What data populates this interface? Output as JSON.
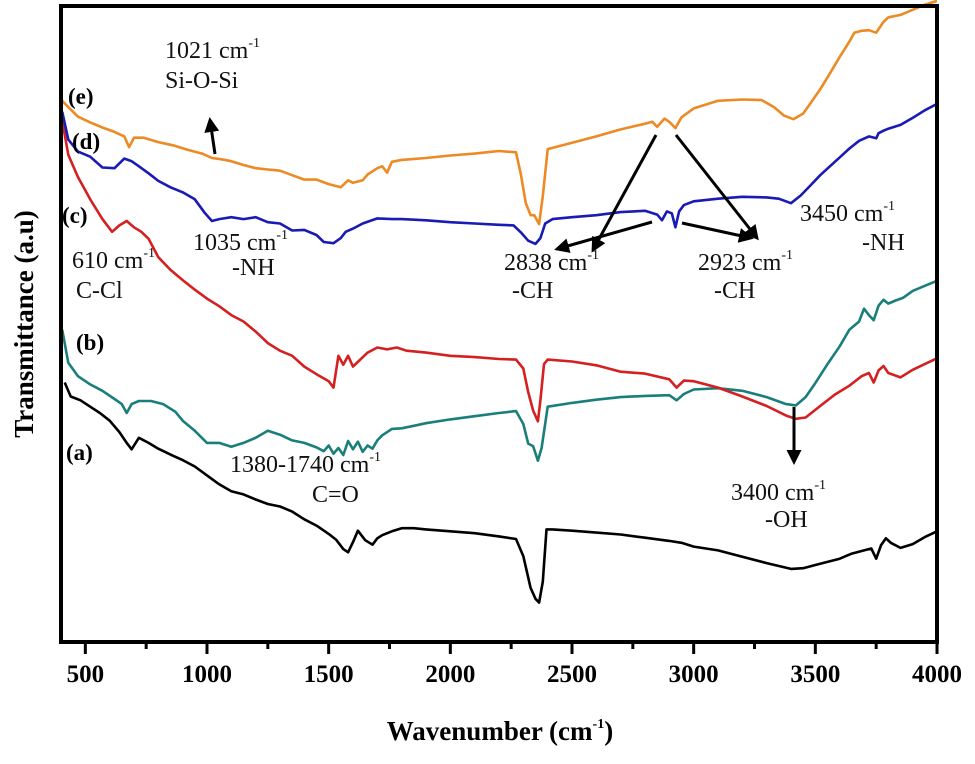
{
  "chart_data": {
    "type": "line",
    "title": "",
    "xlabel": "Wavenumber (cm",
    "xlabel_sup": "-1",
    "xlabel_close": ")",
    "ylabel": "Transmittance (a.u)",
    "xlim": [
      400,
      4000
    ],
    "ylim": [
      0,
      100
    ],
    "xticks": [
      500,
      1000,
      1500,
      2000,
      2500,
      3000,
      3500,
      4000
    ],
    "xtick_labels": [
      "500",
      "1000",
      "1500",
      "2000",
      "2500",
      "3000",
      "3500",
      "4000"
    ],
    "minor_xticks": [
      750,
      1250,
      1750,
      2250,
      2750,
      3250,
      3750
    ],
    "yticks": [],
    "grid": false,
    "legend": "none (curves labelled inline at left)",
    "series": [
      {
        "name": "(a)",
        "color": "#000000",
        "x": [
          415,
          440,
          480,
          520,
          560,
          600,
          640,
          670,
          690,
          720,
          760,
          800,
          860,
          900,
          950,
          1000,
          1050,
          1100,
          1150,
          1200,
          1250,
          1300,
          1350,
          1400,
          1450,
          1500,
          1530,
          1560,
          1580,
          1600,
          1620,
          1650,
          1680,
          1700,
          1720,
          1760,
          1800,
          1850,
          1900,
          2000,
          2100,
          2200,
          2270,
          2300,
          2330,
          2350,
          2365,
          2380,
          2395,
          2420,
          2500,
          2600,
          2700,
          2800,
          2900,
          2950,
          3000,
          3100,
          3200,
          3300,
          3400,
          3450,
          3500,
          3550,
          3600,
          3650,
          3700,
          3730,
          3750,
          3770,
          3790,
          3810,
          3850,
          3900,
          3950,
          4000
        ],
        "y": [
          40.8,
          38.6,
          38.0,
          37.0,
          36.0,
          34.8,
          33.0,
          31.3,
          30.3,
          32.1,
          31.3,
          30.4,
          29.3,
          28.6,
          27.6,
          26.2,
          24.8,
          23.7,
          23.2,
          22.4,
          21.7,
          21.3,
          20.5,
          19.3,
          18.3,
          17.0,
          16.1,
          14.6,
          14.1,
          15.7,
          17.5,
          16.0,
          15.3,
          16.3,
          16.8,
          17.4,
          17.9,
          17.9,
          17.7,
          17.4,
          17.1,
          16.6,
          16.2,
          13.5,
          8.5,
          6.8,
          6.2,
          9.5,
          17.7,
          17.7,
          17.5,
          17.2,
          16.9,
          16.4,
          15.9,
          15.6,
          15.0,
          14.4,
          13.4,
          12.4,
          11.5,
          11.6,
          12.1,
          12.6,
          13.1,
          13.9,
          14.4,
          14.7,
          13.1,
          15.2,
          16.3,
          15.6,
          14.8,
          15.4,
          16.5,
          17.4
        ]
      },
      {
        "name": "(b)",
        "color": "#1a7f7a",
        "x": [
          405,
          430,
          470,
          520,
          570,
          620,
          650,
          670,
          690,
          720,
          770,
          820,
          870,
          900,
          950,
          1000,
          1050,
          1100,
          1150,
          1200,
          1250,
          1300,
          1350,
          1400,
          1450,
          1480,
          1500,
          1520,
          1540,
          1560,
          1580,
          1600,
          1620,
          1640,
          1660,
          1680,
          1700,
          1720,
          1760,
          1800,
          1850,
          1900,
          2000,
          2100,
          2200,
          2270,
          2300,
          2320,
          2340,
          2360,
          2375,
          2400,
          2500,
          2600,
          2700,
          2800,
          2900,
          2930,
          2960,
          3000,
          3100,
          3200,
          3300,
          3380,
          3420,
          3460,
          3500,
          3550,
          3600,
          3640,
          3680,
          3700,
          3720,
          3740,
          3760,
          3780,
          3800,
          3830,
          3860,
          3900,
          3950,
          4000
        ],
        "y": [
          49.1,
          43.9,
          41.8,
          40.5,
          39.5,
          38.2,
          37.4,
          36.0,
          37.4,
          37.9,
          37.9,
          37.4,
          36.2,
          34.8,
          33.2,
          31.3,
          31.3,
          30.7,
          31.3,
          32.1,
          33.2,
          32.6,
          31.7,
          31.3,
          30.6,
          30.0,
          30.9,
          29.6,
          30.5,
          29.4,
          31.6,
          30.3,
          31.5,
          29.9,
          30.9,
          30.4,
          31.7,
          32.5,
          33.5,
          33.6,
          34.0,
          34.4,
          35.0,
          35.5,
          36.0,
          36.3,
          34.3,
          31.2,
          30.8,
          28.5,
          30.5,
          37.0,
          37.6,
          38.1,
          38.5,
          38.7,
          38.8,
          38.0,
          39.0,
          39.7,
          39.9,
          39.5,
          38.5,
          37.4,
          37.2,
          38.5,
          40.7,
          43.7,
          46.5,
          49.1,
          50.4,
          52.4,
          51.4,
          50.6,
          52.9,
          53.8,
          53.2,
          53.7,
          54.1,
          55.2,
          56.0,
          56.8
        ]
      },
      {
        "name": "(c)",
        "color": "#d42020",
        "x": [
          405,
          430,
          470,
          520,
          570,
          610,
          640,
          670,
          700,
          730,
          760,
          800,
          850,
          900,
          950,
          1000,
          1050,
          1100,
          1150,
          1200,
          1250,
          1300,
          1350,
          1400,
          1450,
          1500,
          1520,
          1540,
          1560,
          1580,
          1600,
          1630,
          1660,
          1700,
          1740,
          1780,
          1820,
          1900,
          2000,
          2100,
          2200,
          2270,
          2300,
          2320,
          2340,
          2360,
          2370,
          2385,
          2400,
          2500,
          2600,
          2700,
          2800,
          2900,
          2930,
          2960,
          3000,
          3100,
          3200,
          3300,
          3380,
          3420,
          3460,
          3520,
          3580,
          3640,
          3690,
          3720,
          3740,
          3760,
          3780,
          3800,
          3850,
          3900,
          3950,
          4000
        ],
        "y": [
          82.0,
          76.6,
          73.1,
          69.6,
          66.5,
          64.5,
          65.5,
          66.2,
          65.2,
          64.5,
          63.4,
          60.5,
          58.5,
          56.9,
          55.4,
          54.0,
          52.8,
          51.4,
          50.4,
          48.8,
          47.0,
          45.8,
          45.0,
          43.3,
          42.1,
          41.0,
          40.0,
          45.0,
          43.6,
          45.0,
          43.3,
          44.4,
          45.5,
          46.3,
          46.0,
          46.3,
          45.8,
          45.5,
          45.0,
          44.8,
          44.5,
          44.4,
          43.0,
          39.3,
          36.4,
          34.7,
          38.0,
          43.7,
          44.4,
          44.1,
          43.5,
          42.5,
          42.2,
          41.3,
          40.0,
          41.1,
          41.0,
          40.0,
          38.6,
          37.1,
          35.6,
          35.1,
          35.3,
          37.1,
          38.9,
          40.3,
          41.8,
          42.3,
          40.8,
          42.7,
          43.4,
          42.3,
          41.6,
          42.8,
          43.7,
          44.6
        ]
      },
      {
        "name": "(d)",
        "color": "#1a1ab4",
        "x": [
          405,
          430,
          470,
          520,
          570,
          620,
          660,
          690,
          720,
          760,
          800,
          850,
          900,
          950,
          990,
          1020,
          1050,
          1100,
          1150,
          1200,
          1250,
          1300,
          1350,
          1400,
          1450,
          1480,
          1520,
          1550,
          1570,
          1600,
          1640,
          1700,
          1760,
          1800,
          1900,
          2000,
          2100,
          2200,
          2260,
          2290,
          2320,
          2350,
          2370,
          2390,
          2420,
          2500,
          2600,
          2700,
          2800,
          2850,
          2870,
          2890,
          2910,
          2925,
          2940,
          2960,
          3000,
          3100,
          3200,
          3300,
          3350,
          3400,
          3440,
          3480,
          3520,
          3560,
          3600,
          3640,
          3680,
          3720,
          3750,
          3760,
          3780,
          3800,
          3850,
          3900,
          3950,
          4000
        ],
        "y": [
          83.4,
          79.0,
          77.1,
          76.3,
          74.6,
          74.5,
          76.0,
          75.6,
          74.8,
          73.7,
          72.5,
          71.5,
          70.7,
          69.6,
          67.5,
          66.2,
          66.5,
          66.8,
          66.5,
          66.8,
          66.0,
          65.8,
          64.7,
          64.8,
          64.0,
          62.9,
          62.7,
          63.5,
          64.5,
          65.0,
          65.8,
          66.6,
          66.5,
          66.5,
          66.3,
          66.0,
          65.8,
          65.6,
          65.5,
          64.4,
          63.1,
          62.6,
          63.5,
          65.8,
          66.5,
          66.8,
          67.1,
          67.6,
          67.8,
          67.2,
          66.3,
          67.7,
          67.4,
          65.2,
          67.7,
          68.7,
          69.3,
          69.7,
          70.0,
          69.9,
          69.7,
          69.0,
          70.2,
          71.8,
          73.4,
          74.8,
          76.2,
          77.6,
          78.8,
          79.5,
          79.2,
          80.0,
          80.4,
          80.7,
          81.3,
          82.4,
          83.6,
          84.6
        ]
      },
      {
        "name": "(e)",
        "color": "#ec8a24",
        "x": [
          405,
          430,
          470,
          520,
          570,
          620,
          660,
          680,
          700,
          740,
          800,
          860,
          920,
          980,
          1020,
          1060,
          1100,
          1150,
          1200,
          1250,
          1300,
          1350,
          1400,
          1450,
          1500,
          1550,
          1580,
          1600,
          1640,
          1660,
          1700,
          1720,
          1740,
          1760,
          1800,
          1900,
          2000,
          2100,
          2200,
          2270,
          2290,
          2310,
          2330,
          2345,
          2365,
          2380,
          2400,
          2500,
          2600,
          2700,
          2800,
          2830,
          2850,
          2880,
          2900,
          2925,
          2950,
          3000,
          3100,
          3200,
          3280,
          3330,
          3370,
          3410,
          3450,
          3480,
          3520,
          3560,
          3600,
          3640,
          3660,
          3690,
          3720,
          3750,
          3780,
          3800,
          3850,
          3900,
          3950,
          4000
        ],
        "y": [
          85.1,
          84.1,
          82.6,
          81.7,
          80.9,
          80.2,
          79.5,
          77.8,
          79.3,
          79.3,
          78.6,
          78.1,
          77.4,
          76.8,
          76.1,
          75.9,
          75.6,
          75.0,
          74.5,
          74.3,
          74.1,
          73.4,
          72.7,
          72.7,
          72.0,
          71.5,
          72.6,
          72.2,
          72.6,
          73.5,
          74.5,
          74.8,
          73.8,
          75.5,
          75.8,
          76.1,
          76.5,
          76.8,
          77.2,
          77.0,
          73.5,
          69.0,
          67.1,
          67.1,
          65.7,
          70.1,
          77.5,
          78.5,
          79.5,
          80.6,
          81.5,
          81.8,
          81.0,
          82.3,
          81.8,
          80.8,
          82.5,
          83.9,
          85.1,
          85.3,
          85.2,
          84.1,
          82.8,
          82.2,
          83.1,
          84.7,
          86.9,
          89.4,
          92.0,
          94.4,
          95.8,
          96.1,
          96.2,
          95.8,
          97.5,
          98.2,
          98.6,
          99.4,
          100.2,
          100.8
        ]
      }
    ],
    "curve_labels": [
      {
        "text": "(a)",
        "series": "(a)"
      },
      {
        "text": "(b)",
        "series": "(b)"
      },
      {
        "text": "(c)",
        "series": "(c)"
      },
      {
        "text": "(d)",
        "series": "(d)"
      },
      {
        "text": "(e)",
        "series": "(e)"
      }
    ],
    "annotations": [
      {
        "id": "si-o-si",
        "value": "1021 cm",
        "sup": "-1",
        "group": "Si-O-Si",
        "arrow": "up",
        "points_to_x": 1021
      },
      {
        "id": "c-cl",
        "value": "610 cm",
        "sup": "-1",
        "group": "C-Cl",
        "arrow": "none",
        "points_to_x": 610
      },
      {
        "id": "nh-1035",
        "value": "1035 cm",
        "sup": "-1",
        "group": "-NH",
        "arrow": "none",
        "points_to_x": 1035
      },
      {
        "id": "ch-2838",
        "value": "2838 cm",
        "sup": "-1",
        "group": "-CH",
        "arrow": "from peaks",
        "points_to_x": 2838
      },
      {
        "id": "ch-2923",
        "value": "2923 cm",
        "sup": "-1",
        "group": "-CH",
        "arrow": "from peaks",
        "points_to_x": 2923
      },
      {
        "id": "nh-3450",
        "value": "3450 cm",
        "sup": "-1",
        "group": "-NH",
        "arrow": "none",
        "points_to_x": 3450
      },
      {
        "id": "co",
        "value": "1380-1740 cm",
        "sup": "-1",
        "group": "C=O",
        "arrow": "none",
        "points_to_x": 1560
      },
      {
        "id": "oh",
        "value": "3400 cm",
        "sup": "-1",
        "group": "-OH",
        "arrow": "down",
        "points_to_x": 3400
      }
    ]
  }
}
